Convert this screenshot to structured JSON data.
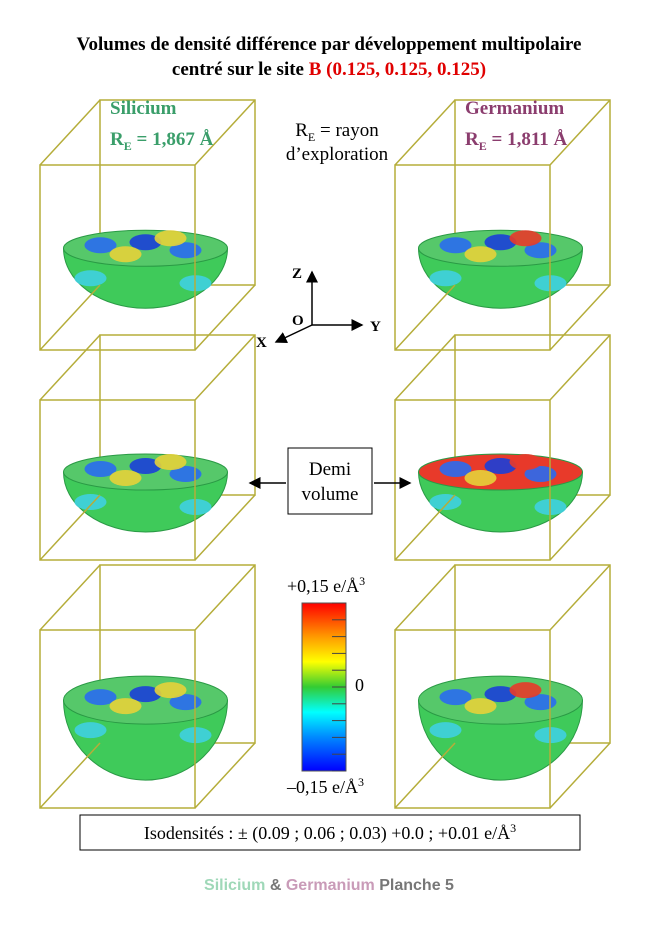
{
  "title": {
    "line1": "Volumes de densité différence par développement multipolaire",
    "line2_prefix": "centré sur le site ",
    "site": "B (0.125, 0.125, 0.125)"
  },
  "columns": [
    {
      "name": "Silicium",
      "radius": {
        "symbol": "R",
        "subscript": "E",
        "value": " = 1,867 Å"
      }
    },
    {
      "name": "Germanium",
      "radius": {
        "symbol": "R",
        "subscript": "E",
        "value": " = 1,811 Å"
      }
    }
  ],
  "radius_note": {
    "symbol": "R",
    "subscript": "E",
    "text": " = rayon",
    "line2": "d’exploration"
  },
  "axes": {
    "z": "Z",
    "origin": "O",
    "x": "X",
    "y": "Y"
  },
  "half_volume_label": {
    "line1": "Demi",
    "line2": "volume"
  },
  "colorbar": {
    "max": {
      "text": "+0,15 e/Å",
      "superscript": "3"
    },
    "zero": "0",
    "min": {
      "text": "–0,15 e/Å",
      "superscript": "3"
    }
  },
  "isodensities": {
    "text": "Isodensités : ± (0.09 ; 0.06 ; 0.03) +0.0 ; +0.01 e/Å",
    "superscript": "3"
  },
  "footer": {
    "silicium": "Silicium",
    "amp": " & ",
    "germanium": "Germanium",
    "plate": " Planche 5"
  }
}
